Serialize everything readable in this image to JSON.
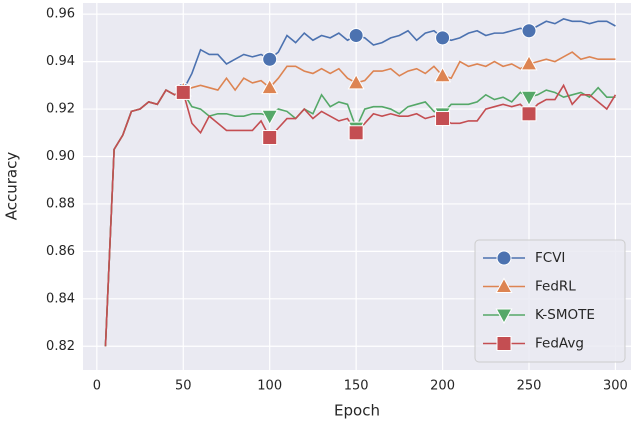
{
  "chart_data": {
    "type": "line",
    "x_label": "Epoch",
    "y_label": "Accuracy",
    "x": [
      5,
      10,
      15,
      20,
      25,
      30,
      35,
      40,
      45,
      50,
      55,
      60,
      65,
      70,
      75,
      80,
      85,
      90,
      95,
      100,
      105,
      110,
      115,
      120,
      125,
      130,
      135,
      140,
      145,
      150,
      155,
      160,
      165,
      170,
      175,
      180,
      185,
      190,
      195,
      200,
      205,
      210,
      215,
      220,
      225,
      230,
      235,
      240,
      245,
      250,
      255,
      260,
      265,
      270,
      275,
      280,
      285,
      290,
      295,
      300
    ],
    "xlim": [
      -8,
      309
    ],
    "xticks": [
      0,
      50,
      100,
      150,
      200,
      250,
      300
    ],
    "ylim": [
      0.81,
      0.9647
    ],
    "yticks": [
      0.82,
      0.84,
      0.86,
      0.88,
      {
        "value": 0.9,
        "label": "0.90"
      },
      0.92,
      0.94,
      0.96
    ],
    "grid": true,
    "legend_position": "lower right",
    "series": [
      {
        "name": "FCVI",
        "color": "#4c72b0",
        "marker": "circle",
        "values": [
          0.82,
          0.903,
          0.909,
          0.919,
          0.92,
          0.923,
          0.922,
          0.928,
          0.926,
          0.928,
          0.935,
          0.945,
          0.943,
          0.943,
          0.939,
          0.941,
          0.943,
          0.942,
          0.943,
          0.941,
          0.944,
          0.951,
          0.948,
          0.952,
          0.949,
          0.951,
          0.95,
          0.952,
          0.949,
          0.951,
          0.95,
          0.947,
          0.948,
          0.95,
          0.951,
          0.953,
          0.949,
          0.952,
          0.953,
          0.95,
          0.949,
          0.95,
          0.952,
          0.953,
          0.951,
          0.952,
          0.952,
          0.953,
          0.954,
          0.953,
          0.955,
          0.957,
          0.956,
          0.958,
          0.957,
          0.957,
          0.956,
          0.957,
          0.957,
          0.955
        ]
      },
      {
        "name": "FedRL",
        "color": "#dd8452",
        "marker": "triangle-up",
        "values": [
          0.82,
          0.903,
          0.909,
          0.919,
          0.92,
          0.923,
          0.922,
          0.928,
          0.926,
          0.928,
          0.929,
          0.93,
          0.929,
          0.928,
          0.933,
          0.928,
          0.933,
          0.931,
          0.932,
          0.929,
          0.933,
          0.938,
          0.938,
          0.936,
          0.935,
          0.937,
          0.935,
          0.937,
          0.933,
          0.931,
          0.932,
          0.936,
          0.936,
          0.937,
          0.934,
          0.936,
          0.937,
          0.935,
          0.938,
          0.934,
          0.933,
          0.94,
          0.938,
          0.939,
          0.938,
          0.94,
          0.938,
          0.939,
          0.937,
          0.939,
          0.94,
          0.941,
          0.94,
          0.942,
          0.944,
          0.941,
          0.942,
          0.941,
          0.941,
          0.941
        ]
      },
      {
        "name": "K-SMOTE",
        "color": "#55a868",
        "marker": "triangle-down",
        "values": [
          0.82,
          0.903,
          0.909,
          0.919,
          0.92,
          0.923,
          0.922,
          0.928,
          0.926,
          0.927,
          0.921,
          0.92,
          0.917,
          0.918,
          0.918,
          0.917,
          0.917,
          0.918,
          0.918,
          0.917,
          0.92,
          0.919,
          0.916,
          0.92,
          0.918,
          0.926,
          0.921,
          0.923,
          0.922,
          0.912,
          0.92,
          0.921,
          0.921,
          0.92,
          0.918,
          0.921,
          0.922,
          0.923,
          0.919,
          0.918,
          0.922,
          0.922,
          0.922,
          0.923,
          0.926,
          0.924,
          0.925,
          0.923,
          0.927,
          0.925,
          0.926,
          0.928,
          0.927,
          0.925,
          0.926,
          0.927,
          0.925,
          0.929,
          0.925,
          0.925
        ]
      },
      {
        "name": "FedAvg",
        "color": "#c44e52",
        "marker": "square",
        "values": [
          0.82,
          0.903,
          0.909,
          0.919,
          0.92,
          0.923,
          0.922,
          0.928,
          0.926,
          0.927,
          0.914,
          0.91,
          0.917,
          0.914,
          0.911,
          0.911,
          0.911,
          0.911,
          0.915,
          0.908,
          0.912,
          0.916,
          0.916,
          0.92,
          0.916,
          0.919,
          0.917,
          0.915,
          0.916,
          0.91,
          0.914,
          0.918,
          0.917,
          0.918,
          0.917,
          0.917,
          0.918,
          0.916,
          0.917,
          0.916,
          0.914,
          0.914,
          0.915,
          0.915,
          0.92,
          0.921,
          0.922,
          0.921,
          0.922,
          0.918,
          0.922,
          0.924,
          0.924,
          0.93,
          0.922,
          0.926,
          0.926,
          0.923,
          0.92,
          0.926
        ]
      }
    ]
  }
}
